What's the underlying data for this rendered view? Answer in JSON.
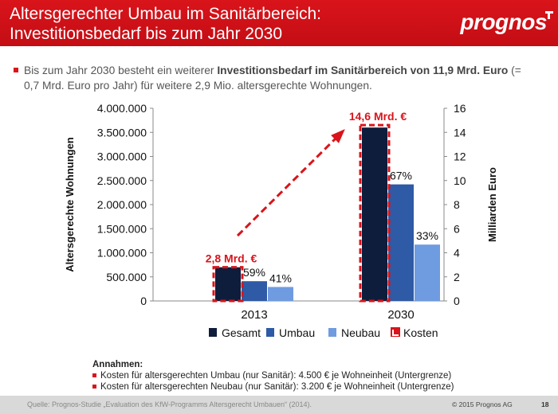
{
  "header": {
    "title_line1": "Altersgerechter Umbau im Sanitärbereich:",
    "title_line2": "Investitionsbedarf bis zum Jahr 2030",
    "logo": "prognos"
  },
  "intro": {
    "part1": "Bis zum Jahr 2030 besteht ein weiterer ",
    "bold": "Investitionsbedarf im Sanitärbereich von 11,9 Mrd. Euro",
    "part2": " (= 0,7 Mrd. Euro pro Jahr) für weitere 2,9 Mio. altersgerechte Wohnungen."
  },
  "chart_data": {
    "type": "bar",
    "categories": [
      "2013",
      "2030"
    ],
    "series": [
      {
        "name": "Gesamt",
        "values": [
          700000,
          3600000
        ],
        "color": "#0f1d3c"
      },
      {
        "name": "Umbau",
        "values": [
          410000,
          2420000
        ],
        "color": "#2e5aa6"
      },
      {
        "name": "Neubau",
        "values": [
          290000,
          1170000
        ],
        "color": "#6f9be0"
      }
    ],
    "costs": {
      "name": "Kosten",
      "values_mrd_euro": [
        2.8,
        14.6
      ],
      "labels": [
        "2,8 Mrd. €",
        "14,6 Mrd. €"
      ],
      "color": "#d9141b"
    },
    "percent_labels": {
      "Umbau": [
        "59%",
        "67%"
      ],
      "Neubau": [
        "41%",
        "33%"
      ]
    },
    "ylabel_left": "Altersgerechte Wohnungen",
    "ylabel_right": "Milliarden Euro",
    "ylim_left": [
      0,
      4000000
    ],
    "ylim_right": [
      0,
      16
    ],
    "yticks_left": [
      "0",
      "500.000",
      "1.000.000",
      "1.500.000",
      "2.000.000",
      "2.500.000",
      "3.000.000",
      "3.500.000",
      "4.000.000"
    ],
    "yticks_right": [
      "0",
      "2",
      "4",
      "6",
      "8",
      "10",
      "12",
      "14",
      "16"
    ],
    "legend_position": "bottom",
    "trend_arrow": "dashed red arrow from 2013 to 2030 costs"
  },
  "assumptions": {
    "title": "Annahmen:",
    "items": [
      "Kosten für altersgerechten Umbau (nur Sanitär): 4.500 € je Wohneinheit (Untergrenze)",
      "Kosten für altersgerechten Neubau (nur Sanitär): 3.200 € je Wohneinheit (Untergrenze)"
    ]
  },
  "footer": {
    "source": "Quelle: Prognos-Studie „Evaluation des KfW-Programms Altersgerecht Umbauen“ (2014).",
    "copyright": "© 2015 Prognos AG",
    "page": "18"
  }
}
